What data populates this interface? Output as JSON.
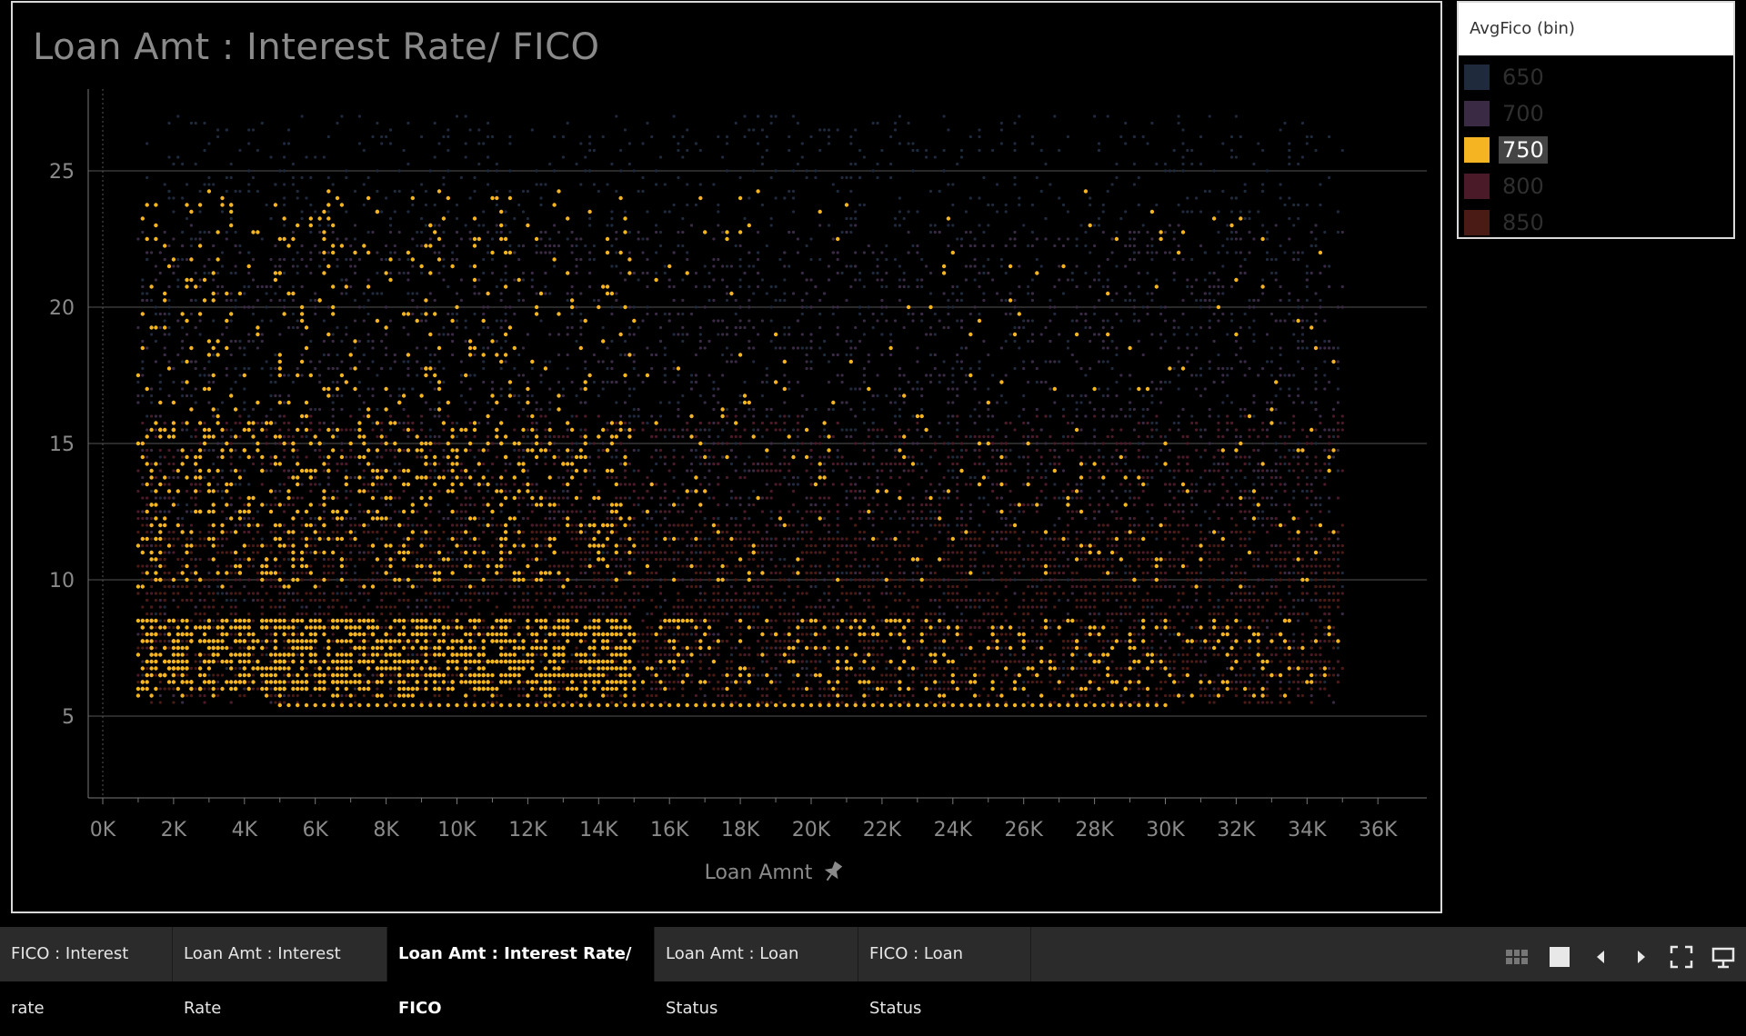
{
  "chart_data": {
    "type": "scatter",
    "title": "Loan Amt : Interest Rate/ FICO",
    "xlabel": "Loan Amnt",
    "ylabel": "",
    "x_ticks": [
      "0K",
      "2K",
      "4K",
      "6K",
      "8K",
      "10K",
      "12K",
      "14K",
      "16K",
      "18K",
      "20K",
      "22K",
      "24K",
      "26K",
      "28K",
      "30K",
      "32K",
      "34K",
      "36K"
    ],
    "y_ticks": [
      5,
      10,
      15,
      20,
      25
    ],
    "xlim": [
      0,
      37000
    ],
    "ylim": [
      2,
      28
    ],
    "grid": true,
    "highlighted_series": "750",
    "series": [
      {
        "name": "650",
        "color": "#1f2a3d",
        "x_range": [
          1000,
          35000
        ],
        "y_range": [
          6,
          27
        ]
      },
      {
        "name": "700",
        "color": "#3a2a44",
        "x_range": [
          1000,
          35000
        ],
        "y_range": [
          5.4,
          23
        ]
      },
      {
        "name": "750",
        "color": "#f5b522",
        "x_range": [
          1000,
          35000
        ],
        "y_range": [
          5.4,
          25
        ]
      },
      {
        "name": "800",
        "color": "#4a1a28",
        "x_range": [
          1000,
          35000
        ],
        "y_range": [
          5.4,
          16
        ]
      },
      {
        "name": "850",
        "color": "#4a1a14",
        "x_range": [
          1000,
          35000
        ],
        "y_range": [
          5.4,
          12
        ]
      }
    ]
  },
  "legend": {
    "title": "AvgFico (bin)",
    "items": [
      {
        "label": "650",
        "color": "#1f2a3d",
        "selected": false
      },
      {
        "label": "700",
        "color": "#3a2a44",
        "selected": false
      },
      {
        "label": "750",
        "color": "#f5b522",
        "selected": true
      },
      {
        "label": "800",
        "color": "#4a1a28",
        "selected": false
      },
      {
        "label": "850",
        "color": "#4a1a14",
        "selected": false
      }
    ]
  },
  "tabs": [
    {
      "label": "FICO : Interest rate",
      "active": false
    },
    {
      "label": "Loan Amt : Interest Rate",
      "active": false
    },
    {
      "label": "Loan Amt : Interest Rate/ FICO",
      "active": true
    },
    {
      "label": "Loan Amt : Loan Status",
      "active": false
    },
    {
      "label": "FICO : Loan Status",
      "active": false
    }
  ],
  "toolbar_icons": [
    "grid-view-icon",
    "single-view-icon",
    "previous-icon",
    "next-icon",
    "fullscreen-icon",
    "presentation-icon"
  ],
  "axis_pin_icon": "pin-icon"
}
